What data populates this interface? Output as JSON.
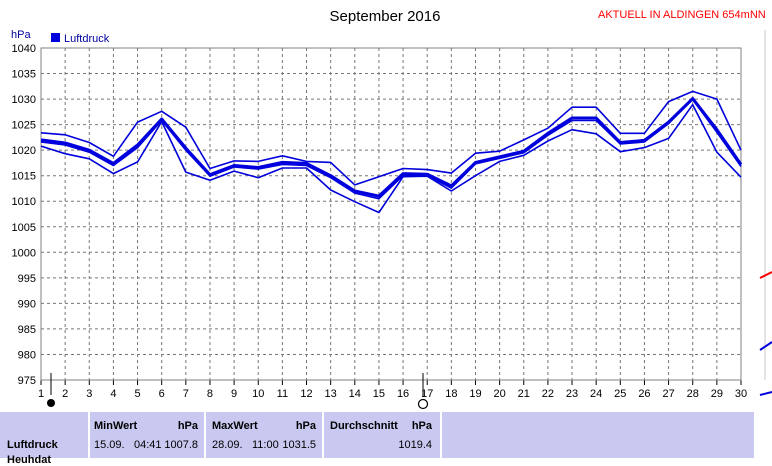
{
  "title": "September 2016",
  "station_label": "AKTUELL IN ALDINGEN 654mNN",
  "y_unit": "hPa",
  "legend_label": "Luftdruck",
  "colors": {
    "series": "#0000dc",
    "grid": "#777777",
    "stats_bg": "#c8c8f0",
    "station_text": "#ff0000"
  },
  "chart_data": {
    "type": "line",
    "x": [
      1,
      2,
      3,
      4,
      5,
      6,
      7,
      8,
      9,
      10,
      11,
      12,
      13,
      14,
      15,
      16,
      17,
      18,
      19,
      20,
      21,
      22,
      23,
      24,
      25,
      26,
      27,
      28,
      29,
      30
    ],
    "xlim": [
      1,
      30
    ],
    "ylim": [
      975,
      1040
    ],
    "y_ticks": [
      975,
      980,
      985,
      990,
      995,
      1000,
      1005,
      1010,
      1015,
      1020,
      1025,
      1030,
      1035,
      1040
    ],
    "grid": true,
    "legend_position": "top-left",
    "series": [
      {
        "name": "Luftdruck",
        "role": "max",
        "values": [
          1023.4,
          1023.0,
          1021.5,
          1018.8,
          1025.5,
          1027.6,
          1024.5,
          1016.4,
          1017.9,
          1017.8,
          1018.9,
          1017.8,
          1017.6,
          1013.2,
          1014.8,
          1016.4,
          1016.2,
          1015.5,
          1019.4,
          1019.8,
          1022.0,
          1024.3,
          1028.4,
          1028.4,
          1023.3,
          1023.3,
          1029.5,
          1031.5,
          1030.0,
          1020.0
        ]
      },
      {
        "name": "Luftdruck",
        "role": "mean",
        "values": [
          1022.0,
          1021.4,
          1020.0,
          1017.4,
          1021.0,
          1026.1,
          1020.4,
          1015.2,
          1017.0,
          1016.6,
          1017.6,
          1017.4,
          1015.0,
          1012.0,
          1011.0,
          1015.4,
          1015.3,
          1013.0,
          1017.6,
          1018.7,
          1019.8,
          1023.3,
          1026.3,
          1026.3,
          1021.5,
          1021.9,
          1025.5,
          1030.1,
          1024.0,
          1017.2
        ]
      },
      {
        "name": "Luftdruck",
        "role": "avg",
        "values": [
          1021.6,
          1021.0,
          1019.6,
          1017.0,
          1020.5,
          1025.8,
          1020.0,
          1014.9,
          1016.7,
          1016.3,
          1017.2,
          1017.0,
          1014.6,
          1011.6,
          1010.5,
          1015.0,
          1015.0,
          1012.6,
          1017.3,
          1018.4,
          1019.5,
          1022.9,
          1025.8,
          1025.8,
          1021.2,
          1021.6,
          1025.2,
          1029.9,
          1023.5,
          1016.8
        ]
      },
      {
        "name": "Luftdruck",
        "role": "min",
        "values": [
          1020.8,
          1019.3,
          1018.3,
          1015.4,
          1017.7,
          1025.6,
          1015.7,
          1014.1,
          1015.9,
          1014.6,
          1016.5,
          1016.5,
          1012.2,
          1009.9,
          1007.8,
          1014.8,
          1014.9,
          1012.0,
          1015.0,
          1017.8,
          1019.0,
          1021.8,
          1024.0,
          1023.2,
          1019.7,
          1020.5,
          1022.3,
          1028.9,
          1019.6,
          1014.7
        ]
      }
    ]
  },
  "stats": {
    "row_label": "Luftdruck",
    "row_label_cut": "Heuhdat",
    "min": {
      "header": "MinWert",
      "unit": "hPa",
      "date": "15.09.",
      "time": "04:41",
      "value": "1007.8"
    },
    "max": {
      "header": "MaxWert",
      "unit": "hPa",
      "date": "28.09.",
      "time": "11:00",
      "value": "1031.5"
    },
    "avg": {
      "header": "Durchschnitt",
      "unit": "hPa",
      "value": "1019.4"
    }
  }
}
